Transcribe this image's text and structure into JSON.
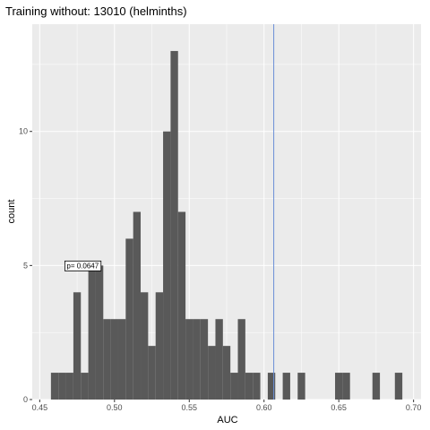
{
  "chart_data": {
    "type": "bar",
    "title": "Training without: 13010 (helminths)",
    "xlabel": "AUC",
    "ylabel": "count",
    "xlim": [
      0.445,
      0.705
    ],
    "ylim": [
      0,
      14
    ],
    "x_ticks": [
      "0.45",
      "0.50",
      "0.55",
      "0.60",
      "0.65",
      "0.70"
    ],
    "x_tick_values": [
      0.45,
      0.5,
      0.55,
      0.6,
      0.65,
      0.7
    ],
    "y_ticks": [
      "0",
      "5",
      "10"
    ],
    "y_tick_values": [
      0,
      5,
      10
    ],
    "bin_width": 0.005,
    "bins": [
      {
        "x": 0.46,
        "count": 1
      },
      {
        "x": 0.465,
        "count": 1
      },
      {
        "x": 0.47,
        "count": 1
      },
      {
        "x": 0.475,
        "count": 4
      },
      {
        "x": 0.48,
        "count": 1
      },
      {
        "x": 0.485,
        "count": 5
      },
      {
        "x": 0.49,
        "count": 5
      },
      {
        "x": 0.495,
        "count": 3
      },
      {
        "x": 0.5,
        "count": 3
      },
      {
        "x": 0.505,
        "count": 3
      },
      {
        "x": 0.51,
        "count": 6
      },
      {
        "x": 0.515,
        "count": 7
      },
      {
        "x": 0.52,
        "count": 4
      },
      {
        "x": 0.525,
        "count": 2
      },
      {
        "x": 0.53,
        "count": 4
      },
      {
        "x": 0.535,
        "count": 10
      },
      {
        "x": 0.54,
        "count": 13
      },
      {
        "x": 0.545,
        "count": 7
      },
      {
        "x": 0.55,
        "count": 3
      },
      {
        "x": 0.555,
        "count": 3
      },
      {
        "x": 0.56,
        "count": 3
      },
      {
        "x": 0.565,
        "count": 2
      },
      {
        "x": 0.57,
        "count": 3
      },
      {
        "x": 0.575,
        "count": 2
      },
      {
        "x": 0.58,
        "count": 1
      },
      {
        "x": 0.585,
        "count": 3
      },
      {
        "x": 0.59,
        "count": 1
      },
      {
        "x": 0.595,
        "count": 1
      },
      {
        "x": 0.605,
        "count": 1
      },
      {
        "x": 0.615,
        "count": 1
      },
      {
        "x": 0.625,
        "count": 1
      },
      {
        "x": 0.65,
        "count": 1
      },
      {
        "x": 0.655,
        "count": 1
      },
      {
        "x": 0.675,
        "count": 1
      },
      {
        "x": 0.69,
        "count": 1
      }
    ],
    "bar_color": "#595959",
    "panel_color": "#ebebeb",
    "grid_color": "#ffffff",
    "vline": {
      "x": 0.6065,
      "color": "#6b8fd6"
    },
    "annotation": {
      "text": "p= 0.0647",
      "x": 0.468,
      "y": 5
    },
    "grid": true,
    "legend": "none"
  }
}
